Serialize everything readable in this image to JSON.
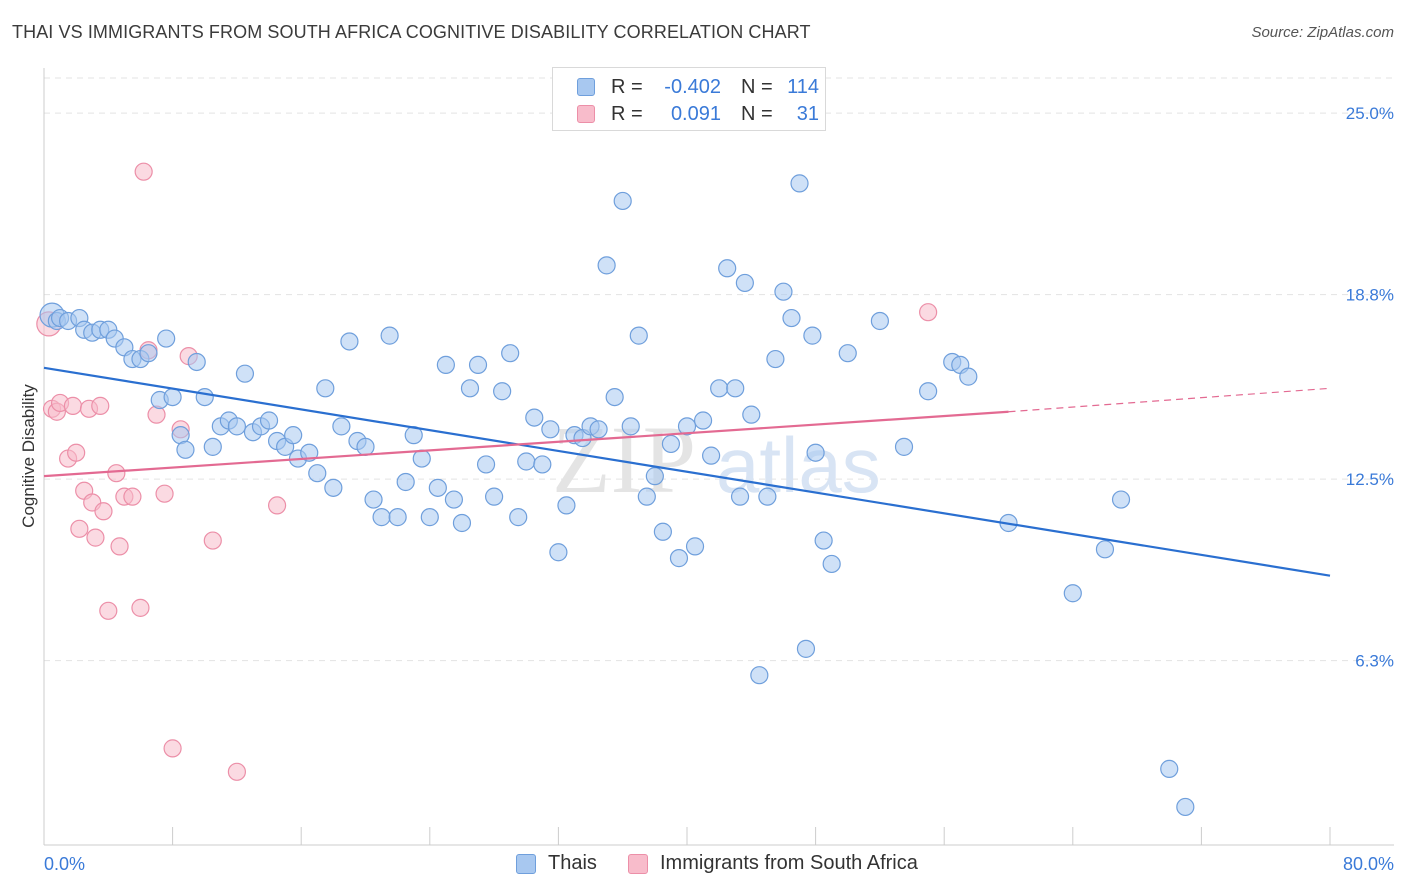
{
  "header": {
    "title": "THAI VS IMMIGRANTS FROM SOUTH AFRICA COGNITIVE DISABILITY CORRELATION CHART",
    "source": "Source: ZipAtlas.com"
  },
  "legend": {
    "rows": [
      {
        "r_label": "R =",
        "r_value": "-0.402",
        "n_label": "N =",
        "n_value": "114"
      },
      {
        "r_label": "R =",
        "r_value": "0.091",
        "n_label": "N =",
        "n_value": "31"
      }
    ]
  },
  "bottom_legend": [
    "Thais",
    "Immigrants from South Africa"
  ],
  "watermark": {
    "part1": "ZIP",
    "part2": "atlas"
  },
  "colors": {
    "blue_fill": "#a8c8f0",
    "blue_stroke": "#6f9fdc",
    "blue_line": "#2a6fd0",
    "pink_fill": "#f8bccb",
    "pink_stroke": "#ec8fa8",
    "pink_line": "#e36a92",
    "tick_label": "#3a7ad8",
    "grid": "#e3e3e3"
  },
  "chart_data": {
    "type": "scatter",
    "ylabel": "Cognitive Disability",
    "xlim": [
      0,
      80
    ],
    "ylim": [
      0,
      26.2
    ],
    "x_tick_labels": [
      "0.0%",
      "80.0%"
    ],
    "y_ticks": [
      {
        "value": 25.0,
        "label": "25.0%"
      },
      {
        "value": 18.8,
        "label": "18.8%"
      },
      {
        "value": 12.5,
        "label": "12.5%"
      },
      {
        "value": 6.3,
        "label": "6.3%"
      }
    ],
    "series": [
      {
        "name": "Thais",
        "color": "blue",
        "trend": {
          "x": [
            0,
            80
          ],
          "y": [
            16.3,
            9.2
          ]
        },
        "points": [
          [
            0.5,
            18.1
          ],
          [
            0.8,
            17.9
          ],
          [
            1.0,
            18.0
          ],
          [
            1.5,
            17.9
          ],
          [
            2.2,
            18.0
          ],
          [
            2.5,
            17.6
          ],
          [
            3.0,
            17.5
          ],
          [
            3.5,
            17.6
          ],
          [
            4.0,
            17.6
          ],
          [
            4.4,
            17.3
          ],
          [
            5.0,
            17.0
          ],
          [
            5.5,
            16.6
          ],
          [
            6.0,
            16.6
          ],
          [
            6.5,
            16.8
          ],
          [
            7.2,
            15.2
          ],
          [
            7.6,
            17.3
          ],
          [
            8.0,
            15.3
          ],
          [
            8.5,
            14.0
          ],
          [
            8.8,
            13.5
          ],
          [
            9.5,
            16.5
          ],
          [
            10.0,
            15.3
          ],
          [
            10.5,
            13.6
          ],
          [
            11.0,
            14.3
          ],
          [
            11.5,
            14.5
          ],
          [
            12.0,
            14.3
          ],
          [
            12.5,
            16.1
          ],
          [
            13.0,
            14.1
          ],
          [
            13.5,
            14.3
          ],
          [
            14.0,
            14.5
          ],
          [
            14.5,
            13.8
          ],
          [
            15.0,
            13.6
          ],
          [
            15.5,
            14.0
          ],
          [
            15.8,
            13.2
          ],
          [
            16.5,
            13.4
          ],
          [
            17.0,
            12.7
          ],
          [
            17.5,
            15.6
          ],
          [
            18.0,
            12.2
          ],
          [
            18.5,
            14.3
          ],
          [
            19.0,
            17.2
          ],
          [
            19.5,
            13.8
          ],
          [
            20.0,
            13.6
          ],
          [
            20.5,
            11.8
          ],
          [
            21.0,
            11.2
          ],
          [
            21.5,
            17.4
          ],
          [
            22.0,
            11.2
          ],
          [
            22.5,
            12.4
          ],
          [
            23.0,
            14.0
          ],
          [
            23.5,
            13.2
          ],
          [
            24.0,
            11.2
          ],
          [
            24.5,
            12.2
          ],
          [
            25.0,
            16.4
          ],
          [
            25.5,
            11.8
          ],
          [
            26.0,
            11.0
          ],
          [
            26.5,
            15.6
          ],
          [
            27.0,
            16.4
          ],
          [
            27.5,
            13.0
          ],
          [
            28.0,
            11.9
          ],
          [
            28.5,
            15.5
          ],
          [
            29.0,
            16.8
          ],
          [
            29.5,
            11.2
          ],
          [
            30.0,
            13.1
          ],
          [
            30.5,
            14.6
          ],
          [
            31.0,
            13.0
          ],
          [
            31.5,
            14.2
          ],
          [
            32.0,
            10.0
          ],
          [
            32.5,
            11.6
          ],
          [
            33.0,
            14.0
          ],
          [
            33.5,
            13.9
          ],
          [
            34.0,
            14.3
          ],
          [
            34.5,
            14.2
          ],
          [
            35.0,
            19.8
          ],
          [
            35.5,
            15.3
          ],
          [
            36.0,
            22.0
          ],
          [
            36.5,
            14.3
          ],
          [
            37.0,
            17.4
          ],
          [
            37.5,
            11.9
          ],
          [
            38.0,
            12.6
          ],
          [
            38.5,
            10.7
          ],
          [
            39.0,
            13.7
          ],
          [
            39.5,
            9.8
          ],
          [
            40.0,
            14.3
          ],
          [
            40.5,
            10.2
          ],
          [
            41.0,
            14.5
          ],
          [
            41.5,
            13.3
          ],
          [
            42.0,
            15.6
          ],
          [
            42.5,
            19.7
          ],
          [
            43.0,
            15.6
          ],
          [
            43.3,
            11.9
          ],
          [
            43.6,
            19.2
          ],
          [
            44.0,
            14.7
          ],
          [
            44.5,
            5.8
          ],
          [
            45.0,
            11.9
          ],
          [
            45.5,
            16.6
          ],
          [
            46.0,
            18.9
          ],
          [
            46.5,
            18.0
          ],
          [
            47.0,
            22.6
          ],
          [
            47.4,
            6.7
          ],
          [
            47.8,
            17.4
          ],
          [
            48.0,
            13.4
          ],
          [
            48.5,
            10.4
          ],
          [
            49.0,
            9.6
          ],
          [
            50.0,
            16.8
          ],
          [
            52.0,
            17.9
          ],
          [
            53.5,
            13.6
          ],
          [
            55.0,
            15.5
          ],
          [
            56.5,
            16.5
          ],
          [
            57.0,
            16.4
          ],
          [
            57.5,
            16.0
          ],
          [
            60.0,
            11.0
          ],
          [
            64.0,
            8.6
          ],
          [
            66.0,
            10.1
          ],
          [
            67.0,
            11.8
          ],
          [
            70.0,
            2.6
          ],
          [
            71.0,
            1.3
          ]
        ]
      },
      {
        "name": "Immigrants from South Africa",
        "color": "pink",
        "trend": {
          "x": [
            0,
            60
          ],
          "y": [
            12.6,
            14.8
          ]
        },
        "trend_dashed_to": {
          "x": 80,
          "y": 15.6
        },
        "points": [
          [
            0.3,
            17.8
          ],
          [
            0.5,
            14.9
          ],
          [
            0.8,
            14.8
          ],
          [
            1.0,
            15.1
          ],
          [
            1.5,
            13.2
          ],
          [
            1.8,
            15.0
          ],
          [
            2.0,
            13.4
          ],
          [
            2.2,
            10.8
          ],
          [
            2.5,
            12.1
          ],
          [
            2.8,
            14.9
          ],
          [
            3.0,
            11.7
          ],
          [
            3.2,
            10.5
          ],
          [
            3.5,
            15.0
          ],
          [
            3.7,
            11.4
          ],
          [
            4.0,
            8.0
          ],
          [
            4.5,
            12.7
          ],
          [
            4.7,
            10.2
          ],
          [
            5.0,
            11.9
          ],
          [
            5.5,
            11.9
          ],
          [
            6.0,
            8.1
          ],
          [
            6.2,
            23.0
          ],
          [
            6.5,
            16.9
          ],
          [
            7.0,
            14.7
          ],
          [
            7.5,
            12.0
          ],
          [
            8.0,
            3.3
          ],
          [
            8.5,
            14.2
          ],
          [
            9.0,
            16.7
          ],
          [
            10.5,
            10.4
          ],
          [
            12.0,
            2.5
          ],
          [
            14.5,
            11.6
          ],
          [
            55.0,
            18.2
          ]
        ]
      }
    ]
  }
}
